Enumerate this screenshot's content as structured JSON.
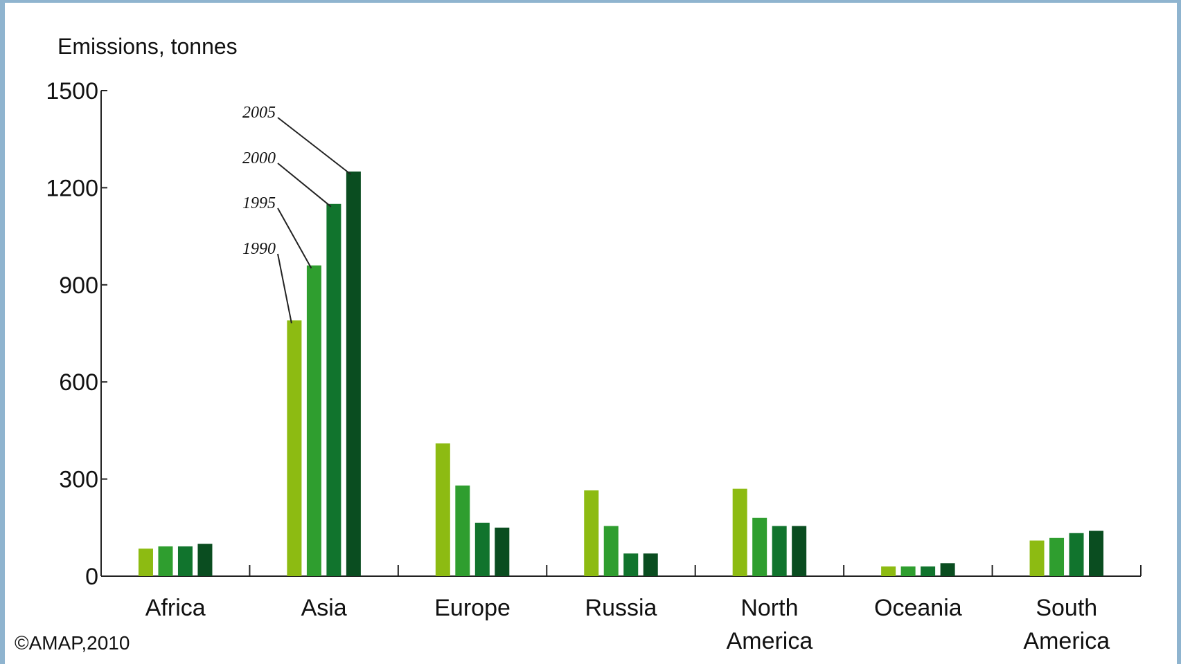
{
  "chart_data": {
    "type": "bar",
    "ylabel": "Emissions, tonnes",
    "xlabel": "",
    "ylim": [
      0,
      1500
    ],
    "yticks": [
      0,
      300,
      600,
      900,
      1200,
      1500
    ],
    "categories": [
      "Africa",
      "Asia",
      "Europe",
      "Russia",
      "North America",
      "Oceania",
      "South America"
    ],
    "category_labels": [
      [
        "Africa"
      ],
      [
        "Asia"
      ],
      [
        "Europe"
      ],
      [
        "Russia"
      ],
      [
        "North",
        "America"
      ],
      [
        "Oceania"
      ],
      [
        "South",
        "America"
      ]
    ],
    "series": [
      {
        "name": "1990",
        "color": "#8dbb12",
        "values": [
          85,
          790,
          410,
          265,
          270,
          30,
          110
        ]
      },
      {
        "name": "1995",
        "color": "#2f9e2f",
        "values": [
          92,
          960,
          280,
          155,
          180,
          30,
          118
        ]
      },
      {
        "name": "2000",
        "color": "#11742d",
        "values": [
          92,
          1150,
          165,
          70,
          155,
          30,
          133
        ]
      },
      {
        "name": "2005",
        "color": "#0a4d20",
        "values": [
          100,
          1250,
          150,
          70,
          155,
          40,
          140
        ]
      }
    ],
    "annotations": {
      "category": "Asia",
      "labels": [
        "2005",
        "2000",
        "1995",
        "1990"
      ]
    },
    "grid": false,
    "legend": "none",
    "credit": "©AMAP,2010"
  }
}
